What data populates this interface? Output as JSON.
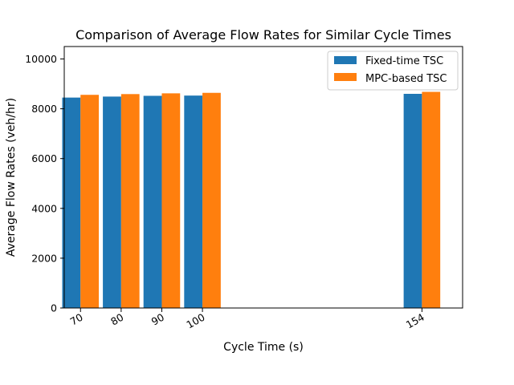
{
  "chart_data": {
    "type": "bar",
    "title": "Comparison of Average Flow Rates for Similar Cycle Times",
    "xlabel": "Cycle Time (s)",
    "ylabel": "Average Flow Rates (veh/hr)",
    "x": [
      70,
      80,
      90,
      100,
      154
    ],
    "categories": [
      "70",
      "80",
      "90",
      "100",
      "154"
    ],
    "xlim": [
      66,
      164
    ],
    "ylim": [
      0,
      10500
    ],
    "yticks": [
      0,
      2000,
      4000,
      6000,
      8000,
      10000
    ],
    "grid": false,
    "legend_position": "top-right",
    "series": [
      {
        "name": "Fixed-time TSC",
        "color": "#1f77b4",
        "values": [
          8450,
          8490,
          8520,
          8530,
          8600
        ]
      },
      {
        "name": "MPC-based TSC",
        "color": "#ff7f0e",
        "values": [
          8560,
          8590,
          8620,
          8640,
          8680
        ]
      }
    ]
  }
}
